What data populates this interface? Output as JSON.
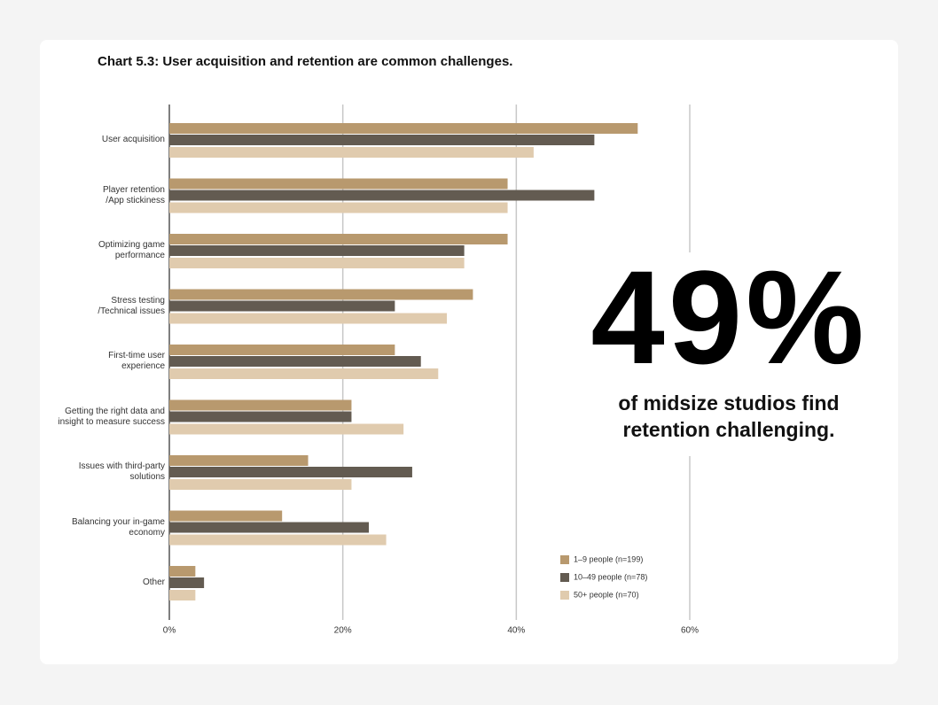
{
  "chart_data": {
    "type": "bar",
    "orientation": "horizontal",
    "title": "Chart 5.3: User acquisition and retention are common challenges.",
    "categories": [
      "User acquisition",
      "Player retention\n/App stickiness",
      "Optimizing game\nperformance",
      "Stress testing\n/Technical issues",
      "First-time user\nexperience",
      "Getting the right data and\ninsight to measure success",
      "Issues with third-party\nsolutions",
      "Balancing your in-game\neconomy",
      "Other"
    ],
    "series": [
      {
        "name": "1–9 people (n=199)",
        "color": "#b8996e",
        "values": [
          54,
          39,
          39,
          35,
          26,
          21,
          16,
          13,
          3
        ]
      },
      {
        "name": "10–49 people (n=78)",
        "color": "#635b51",
        "values": [
          49,
          49,
          34,
          26,
          29,
          21,
          28,
          23,
          4
        ]
      },
      {
        "name": "50+ people (n=70)",
        "color": "#e0cbae",
        "values": [
          42,
          39,
          34,
          32,
          31,
          27,
          21,
          25,
          3
        ]
      }
    ],
    "xlim": [
      0,
      60
    ],
    "xticks": [
      {
        "value": 0,
        "label": "0%"
      },
      {
        "value": 20,
        "label": "20%"
      },
      {
        "value": 40,
        "label": "40%"
      },
      {
        "value": 60,
        "label": "60%"
      }
    ],
    "grid": true,
    "legend": "lower right",
    "annotation": {
      "headline": "49%",
      "text": "of midsize studios find retention challenging."
    }
  }
}
